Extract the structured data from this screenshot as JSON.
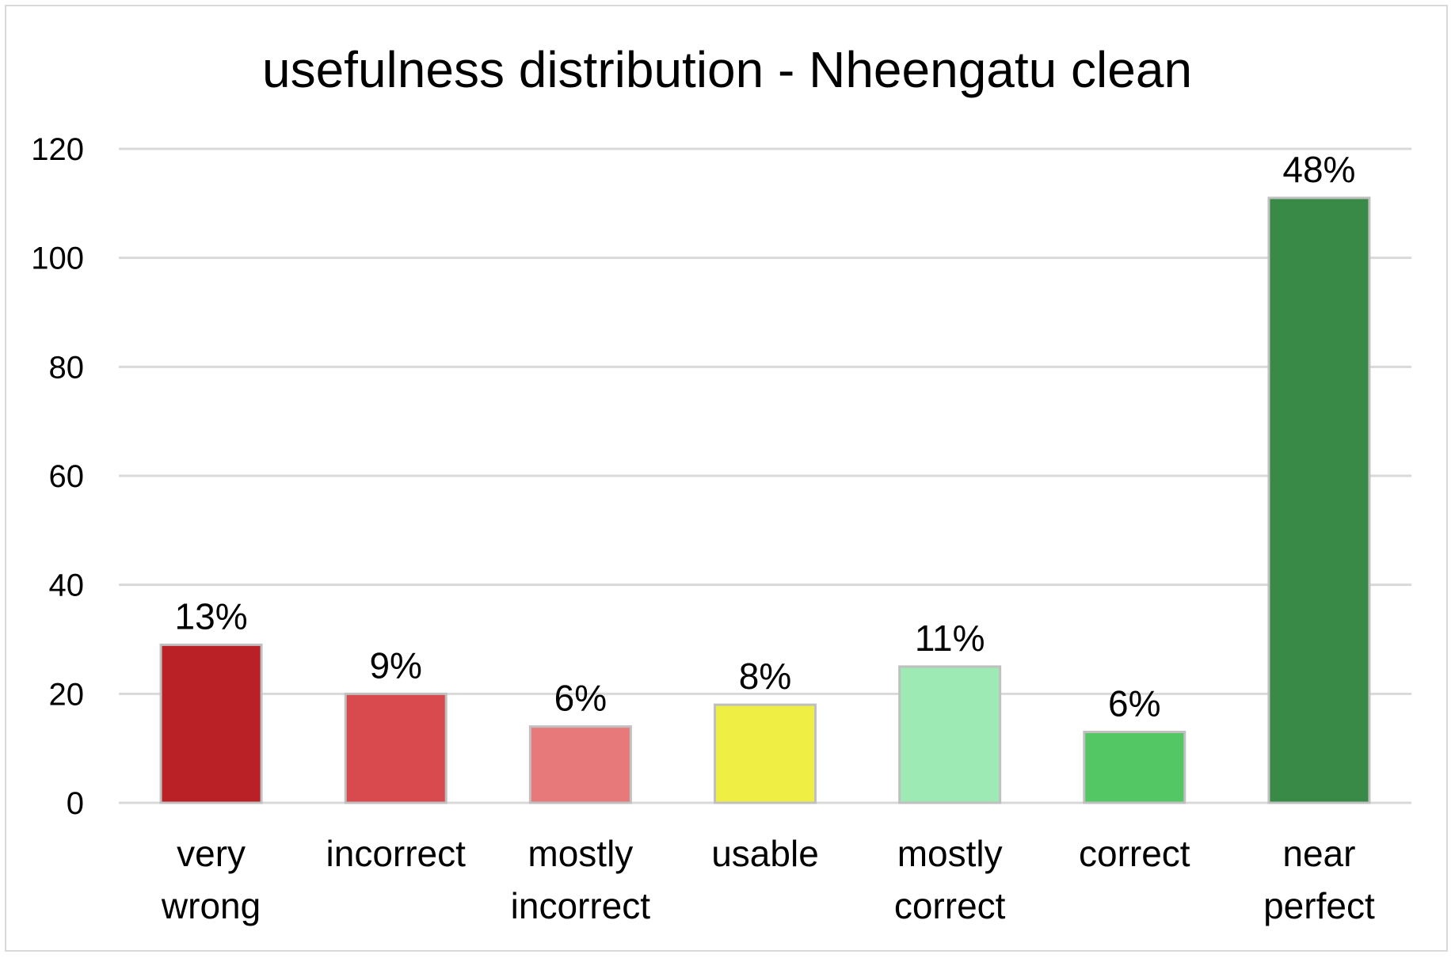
{
  "chart_data": {
    "type": "bar",
    "title": "usefulness distribution - Nheengatu clean",
    "xlabel": "",
    "ylabel": "",
    "categories": [
      [
        "very",
        "wrong"
      ],
      [
        "incorrect"
      ],
      [
        "mostly",
        "incorrect"
      ],
      [
        "usable"
      ],
      [
        "mostly",
        "correct"
      ],
      [
        "correct"
      ],
      [
        "near",
        "perfect"
      ]
    ],
    "values": [
      29,
      20,
      14,
      18,
      25,
      13,
      111
    ],
    "data_labels": [
      "13%",
      "9%",
      "6%",
      "8%",
      "11%",
      "6%",
      "48%"
    ],
    "colors": [
      "#ba2126",
      "#d84a4e",
      "#e8797b",
      "#eeee45",
      "#9deab5",
      "#52c763",
      "#398a47"
    ],
    "bar_outline": "#c0c0c0",
    "gridline_color": "#d9d9d9",
    "ylim": [
      0,
      120
    ],
    "yticks": [
      0,
      20,
      40,
      60,
      80,
      100,
      120
    ],
    "grid": true,
    "legend": "none"
  }
}
